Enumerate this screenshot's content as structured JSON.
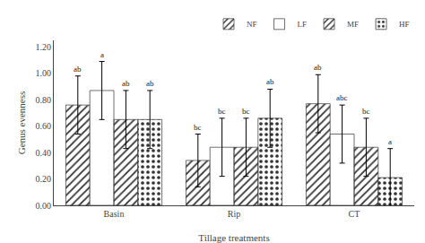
{
  "chart_data": {
    "type": "bar",
    "xlabel": "Tillage treatments",
    "ylabel": "Genus evenness",
    "categories": [
      "Basin",
      "Rip",
      "CT"
    ],
    "series": [
      {
        "name": "NF",
        "color": "#b0b0b0",
        "values": [
          0.76,
          0.34,
          0.77
        ],
        "error_upper": [
          0.22,
          0.2,
          0.22
        ],
        "error_lower": [
          0.22,
          0.2,
          0.22
        ],
        "annotations": [
          "ab",
          "bc",
          "ab"
        ]
      },
      {
        "name": "LF",
        "color": "#ffffff",
        "values": [
          0.87,
          0.44,
          0.54
        ],
        "error_upper": [
          0.22,
          0.22,
          0.22
        ],
        "error_lower": [
          0.22,
          0.22,
          0.22
        ],
        "annotations": [
          "a",
          "bc",
          "abc"
        ]
      },
      {
        "name": "MF",
        "color": "#b0b0b0",
        "values": [
          0.65,
          0.44,
          0.44
        ],
        "error_upper": [
          0.22,
          0.22,
          0.22
        ],
        "error_lower": [
          0.22,
          0.22,
          0.22
        ],
        "annotations": [
          "ab",
          "bc",
          "bc"
        ]
      },
      {
        "name": "HF",
        "color": "#d8d8d8",
        "values": [
          0.65,
          0.66,
          0.21
        ],
        "error_upper": [
          0.22,
          0.22,
          0.22
        ],
        "error_lower": [
          0.22,
          0.22,
          0.22
        ],
        "annotations": [
          "ab",
          "ab",
          "a"
        ]
      }
    ],
    "ylim": [
      0.0,
      1.25
    ],
    "yticks": [
      {
        "value": 0.0,
        "label": "0.00"
      },
      {
        "value": 0.2,
        "label": "0.20"
      },
      {
        "value": 0.4,
        "label": "0.40"
      },
      {
        "value": 0.6,
        "label": "0.60"
      },
      {
        "value": 0.8,
        "label": "0.80"
      },
      {
        "value": 1.0,
        "label": "1.00"
      },
      {
        "value": 1.2,
        "label": "1.20"
      }
    ],
    "grid": false,
    "legend": "upper right"
  }
}
